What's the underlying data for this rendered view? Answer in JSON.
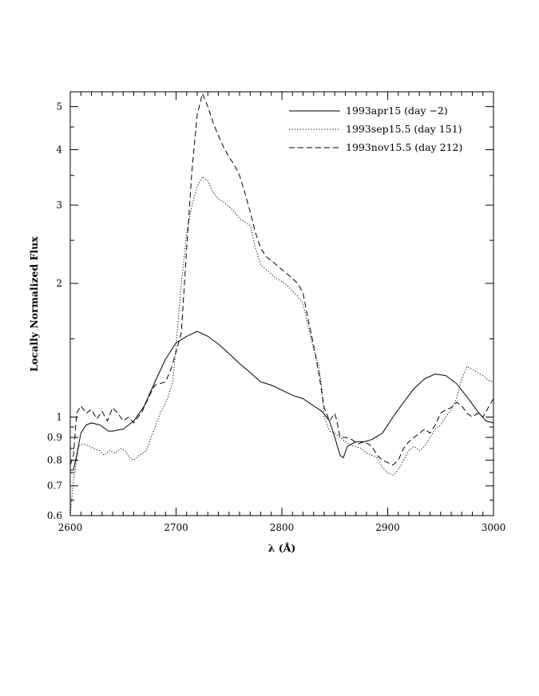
{
  "chart_data": {
    "type": "line",
    "title": "",
    "xlabel": "λ (Å)",
    "ylabel": "Locally Normalized Flux",
    "xlim": [
      2600,
      3000
    ],
    "ylim": [
      0.6,
      5.4
    ],
    "yscale": "log",
    "grid": false,
    "legend_position": "top-right",
    "x_ticks": [
      2600,
      2700,
      2800,
      2900,
      3000
    ],
    "x_tick_labels": [
      "2600",
      "2700",
      "2800",
      "2900",
      "3000"
    ],
    "y_ticks": [
      0.6,
      0.7,
      0.8,
      0.9,
      1,
      2,
      3,
      4,
      5
    ],
    "y_tick_labels": [
      "0.6",
      "0.7",
      "0.8",
      "0.9",
      "1",
      "2",
      "3",
      "4",
      "5"
    ],
    "series": [
      {
        "name": "1993apr15 (day −2)",
        "line_style": "solid",
        "points": [
          [
            2600,
            0.76
          ],
          [
            2603,
            0.76
          ],
          [
            2606,
            0.82
          ],
          [
            2610,
            0.92
          ],
          [
            2615,
            0.96
          ],
          [
            2620,
            0.97
          ],
          [
            2628,
            0.96
          ],
          [
            2636,
            0.93
          ],
          [
            2640,
            0.93
          ],
          [
            2650,
            0.94
          ],
          [
            2660,
            0.98
          ],
          [
            2670,
            1.06
          ],
          [
            2680,
            1.2
          ],
          [
            2690,
            1.35
          ],
          [
            2700,
            1.47
          ],
          [
            2710,
            1.52
          ],
          [
            2720,
            1.56
          ],
          [
            2730,
            1.52
          ],
          [
            2740,
            1.46
          ],
          [
            2750,
            1.39
          ],
          [
            2760,
            1.32
          ],
          [
            2770,
            1.26
          ],
          [
            2780,
            1.2
          ],
          [
            2790,
            1.18
          ],
          [
            2800,
            1.15
          ],
          [
            2810,
            1.12
          ],
          [
            2820,
            1.1
          ],
          [
            2830,
            1.06
          ],
          [
            2838,
            1.03
          ],
          [
            2845,
            0.98
          ],
          [
            2850,
            0.9
          ],
          [
            2855,
            0.82
          ],
          [
            2858,
            0.81
          ],
          [
            2862,
            0.86
          ],
          [
            2870,
            0.88
          ],
          [
            2878,
            0.88
          ],
          [
            2885,
            0.89
          ],
          [
            2895,
            0.92
          ],
          [
            2905,
            1.0
          ],
          [
            2915,
            1.08
          ],
          [
            2925,
            1.16
          ],
          [
            2935,
            1.22
          ],
          [
            2945,
            1.25
          ],
          [
            2955,
            1.24
          ],
          [
            2965,
            1.19
          ],
          [
            2975,
            1.11
          ],
          [
            2985,
            1.03
          ],
          [
            2993,
            0.98
          ],
          [
            3000,
            0.97
          ]
        ]
      },
      {
        "name": "1993sep15.5 (day 151)",
        "line_style": "dotted",
        "points": [
          [
            2600,
            0.6
          ],
          [
            2603,
            0.72
          ],
          [
            2608,
            0.86
          ],
          [
            2612,
            0.87
          ],
          [
            2618,
            0.86
          ],
          [
            2622,
            0.85
          ],
          [
            2628,
            0.84
          ],
          [
            2632,
            0.82
          ],
          [
            2637,
            0.84
          ],
          [
            2642,
            0.83
          ],
          [
            2648,
            0.85
          ],
          [
            2652,
            0.84
          ],
          [
            2656,
            0.81
          ],
          [
            2660,
            0.8
          ],
          [
            2665,
            0.82
          ],
          [
            2672,
            0.84
          ],
          [
            2678,
            0.92
          ],
          [
            2685,
            1.02
          ],
          [
            2692,
            1.1
          ],
          [
            2697,
            1.2
          ],
          [
            2700,
            1.45
          ],
          [
            2705,
            2.0
          ],
          [
            2710,
            2.6
          ],
          [
            2715,
            3.0
          ],
          [
            2720,
            3.3
          ],
          [
            2725,
            3.48
          ],
          [
            2730,
            3.4
          ],
          [
            2735,
            3.2
          ],
          [
            2740,
            3.1
          ],
          [
            2745,
            3.05
          ],
          [
            2750,
            2.98
          ],
          [
            2755,
            2.9
          ],
          [
            2760,
            2.8
          ],
          [
            2765,
            2.75
          ],
          [
            2770,
            2.7
          ],
          [
            2775,
            2.4
          ],
          [
            2780,
            2.2
          ],
          [
            2785,
            2.15
          ],
          [
            2790,
            2.1
          ],
          [
            2795,
            2.05
          ],
          [
            2800,
            2.02
          ],
          [
            2805,
            1.98
          ],
          [
            2810,
            1.92
          ],
          [
            2815,
            1.87
          ],
          [
            2820,
            1.8
          ],
          [
            2825,
            1.6
          ],
          [
            2830,
            1.42
          ],
          [
            2835,
            1.3
          ],
          [
            2838,
            1.15
          ],
          [
            2840,
            1.0
          ],
          [
            2845,
            0.93
          ],
          [
            2850,
            0.92
          ],
          [
            2855,
            0.9
          ],
          [
            2860,
            0.88
          ],
          [
            2868,
            0.86
          ],
          [
            2875,
            0.85
          ],
          [
            2880,
            0.83
          ],
          [
            2885,
            0.82
          ],
          [
            2890,
            0.81
          ],
          [
            2895,
            0.77
          ],
          [
            2900,
            0.75
          ],
          [
            2905,
            0.74
          ],
          [
            2910,
            0.76
          ],
          [
            2915,
            0.8
          ],
          [
            2920,
            0.84
          ],
          [
            2925,
            0.86
          ],
          [
            2930,
            0.84
          ],
          [
            2935,
            0.86
          ],
          [
            2940,
            0.9
          ],
          [
            2945,
            0.94
          ],
          [
            2950,
            0.96
          ],
          [
            2955,
            1.0
          ],
          [
            2960,
            1.04
          ],
          [
            2965,
            1.1
          ],
          [
            2970,
            1.22
          ],
          [
            2975,
            1.3
          ],
          [
            2980,
            1.28
          ],
          [
            2985,
            1.26
          ],
          [
            2990,
            1.24
          ],
          [
            2995,
            1.21
          ],
          [
            3000,
            1.2
          ]
        ]
      },
      {
        "name": "1993nov15.5 (day 212)",
        "line_style": "dashed",
        "points": [
          [
            2600,
            0.78
          ],
          [
            2603,
            0.82
          ],
          [
            2606,
            1.02
          ],
          [
            2610,
            1.06
          ],
          [
            2615,
            1.02
          ],
          [
            2620,
            1.04
          ],
          [
            2625,
            0.99
          ],
          [
            2630,
            1.03
          ],
          [
            2635,
            0.98
          ],
          [
            2640,
            1.05
          ],
          [
            2645,
            1.02
          ],
          [
            2650,
            0.98
          ],
          [
            2655,
            1.0
          ],
          [
            2660,
            0.97
          ],
          [
            2668,
            1.03
          ],
          [
            2675,
            1.12
          ],
          [
            2680,
            1.18
          ],
          [
            2690,
            1.2
          ],
          [
            2695,
            1.28
          ],
          [
            2700,
            1.4
          ],
          [
            2705,
            1.55
          ],
          [
            2710,
            2.4
          ],
          [
            2715,
            3.6
          ],
          [
            2720,
            4.8
          ],
          [
            2725,
            5.35
          ],
          [
            2730,
            5.0
          ],
          [
            2735,
            4.6
          ],
          [
            2740,
            4.3
          ],
          [
            2745,
            4.05
          ],
          [
            2750,
            3.85
          ],
          [
            2755,
            3.7
          ],
          [
            2760,
            3.5
          ],
          [
            2765,
            3.2
          ],
          [
            2770,
            2.9
          ],
          [
            2775,
            2.6
          ],
          [
            2780,
            2.4
          ],
          [
            2785,
            2.3
          ],
          [
            2790,
            2.25
          ],
          [
            2795,
            2.2
          ],
          [
            2800,
            2.15
          ],
          [
            2805,
            2.1
          ],
          [
            2810,
            2.05
          ],
          [
            2815,
            2.0
          ],
          [
            2820,
            1.9
          ],
          [
            2825,
            1.65
          ],
          [
            2830,
            1.45
          ],
          [
            2835,
            1.25
          ],
          [
            2840,
            1.05
          ],
          [
            2845,
            0.98
          ],
          [
            2850,
            1.02
          ],
          [
            2852,
            0.98
          ],
          [
            2855,
            0.9
          ],
          [
            2860,
            0.9
          ],
          [
            2866,
            0.89
          ],
          [
            2872,
            0.87
          ],
          [
            2878,
            0.88
          ],
          [
            2885,
            0.86
          ],
          [
            2890,
            0.82
          ],
          [
            2895,
            0.8
          ],
          [
            2900,
            0.79
          ],
          [
            2905,
            0.78
          ],
          [
            2910,
            0.8
          ],
          [
            2915,
            0.85
          ],
          [
            2920,
            0.88
          ],
          [
            2925,
            0.9
          ],
          [
            2930,
            0.92
          ],
          [
            2935,
            0.94
          ],
          [
            2940,
            0.92
          ],
          [
            2945,
            0.96
          ],
          [
            2950,
            1.02
          ],
          [
            2955,
            1.04
          ],
          [
            2960,
            1.05
          ],
          [
            2965,
            1.08
          ],
          [
            2970,
            1.06
          ],
          [
            2975,
            1.02
          ],
          [
            2980,
            1.0
          ],
          [
            2985,
            1.02
          ],
          [
            2990,
            1.0
          ],
          [
            2995,
            1.05
          ],
          [
            3000,
            1.1
          ]
        ]
      }
    ]
  }
}
